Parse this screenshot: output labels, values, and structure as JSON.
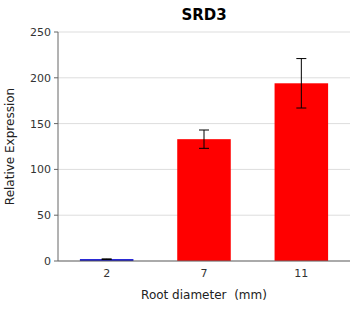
{
  "chart_data": {
    "type": "bar",
    "title": "SRD3",
    "xlabel": "Root diameter  (mm)",
    "ylabel": "Relative Expression",
    "categories": [
      "2",
      "7",
      "11"
    ],
    "values": [
      2,
      133,
      194
    ],
    "errors": [
      0.3,
      10,
      27
    ],
    "colors": [
      "#0000CD",
      "#ff0000",
      "#ff0000"
    ],
    "ylim": [
      0,
      250
    ],
    "yticks": [
      0,
      50,
      100,
      150,
      200,
      250
    ],
    "grid": true
  }
}
